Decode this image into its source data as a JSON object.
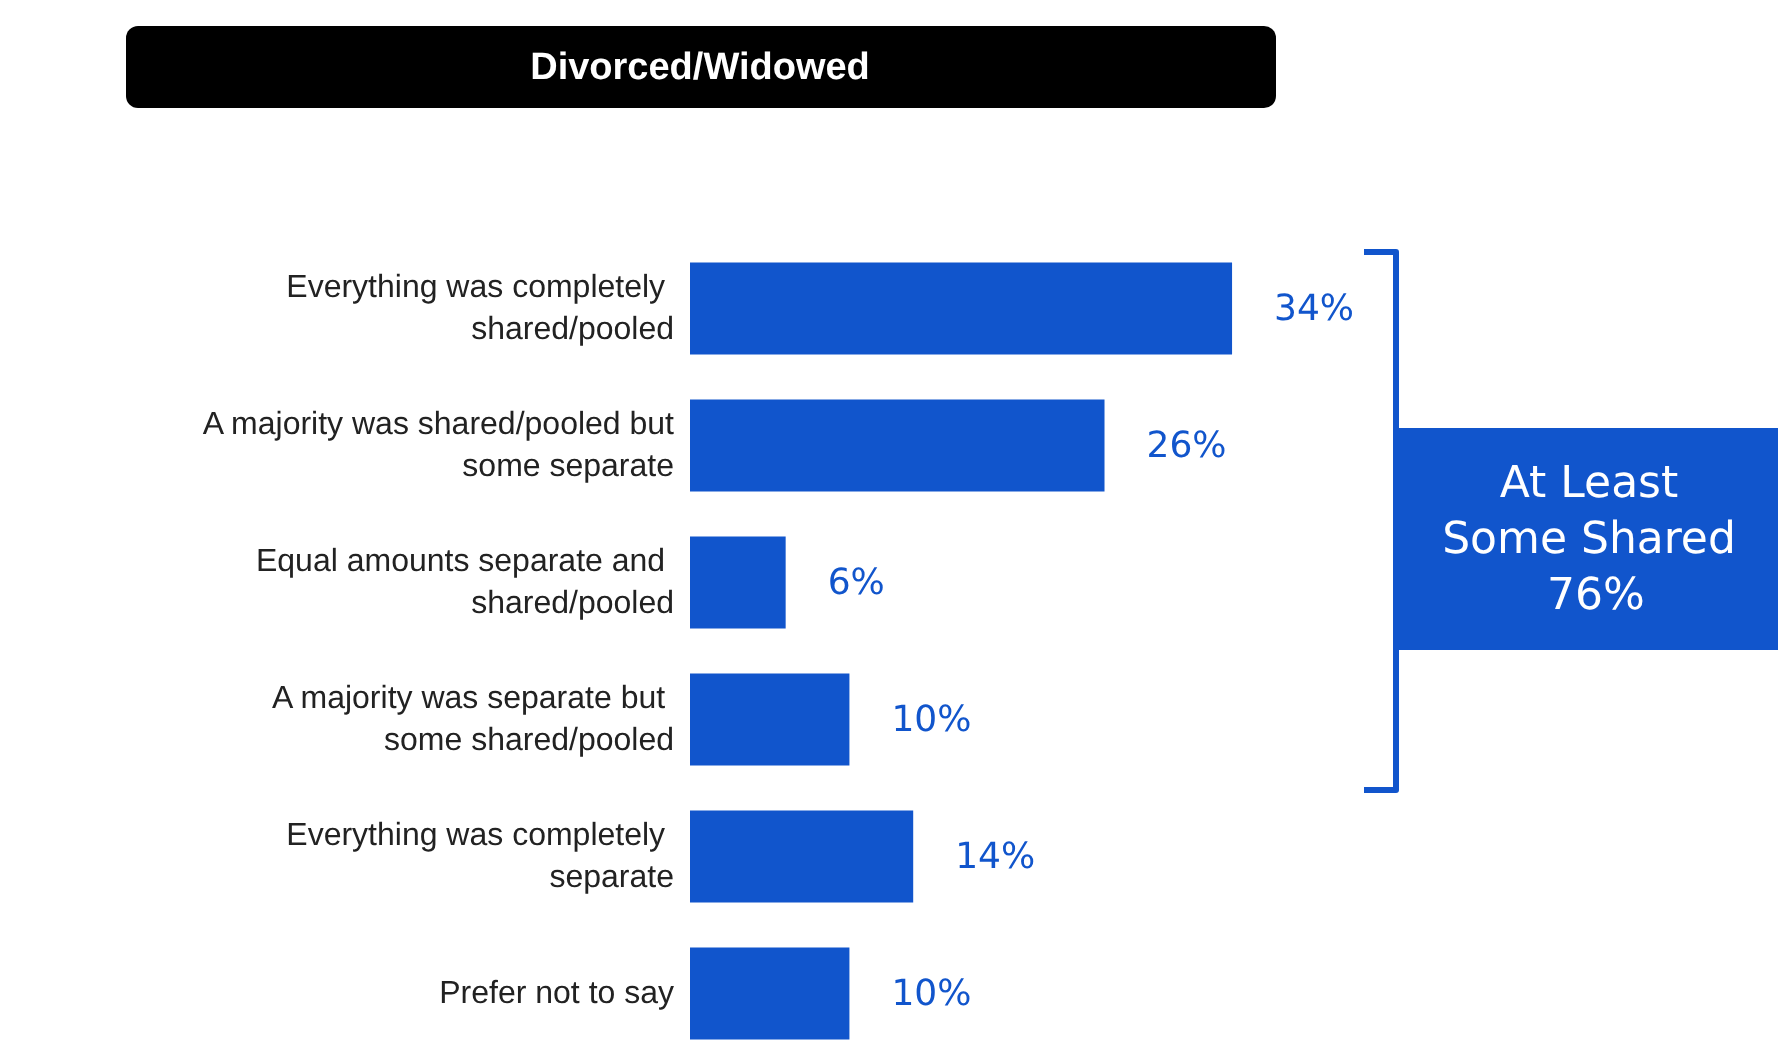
{
  "chart_data": {
    "type": "bar",
    "orientation": "horizontal",
    "title": "Divorced/Widowed",
    "categories": [
      "Everything was completely shared/pooled",
      "A majority was shared/pooled but some separate",
      "Equal amounts separate and shared/pooled",
      "A majority was separate but some shared/pooled",
      "Everything was completely separate",
      "Prefer not to say"
    ],
    "values": [
      34,
      26,
      6,
      10,
      14,
      10
    ],
    "color": "#1155cc",
    "value_labels": [
      "34%",
      "26%",
      "6%",
      "10%",
      "14%",
      "10%"
    ],
    "annotations": [
      "At Least Some Shared 76%"
    ]
  }
}
